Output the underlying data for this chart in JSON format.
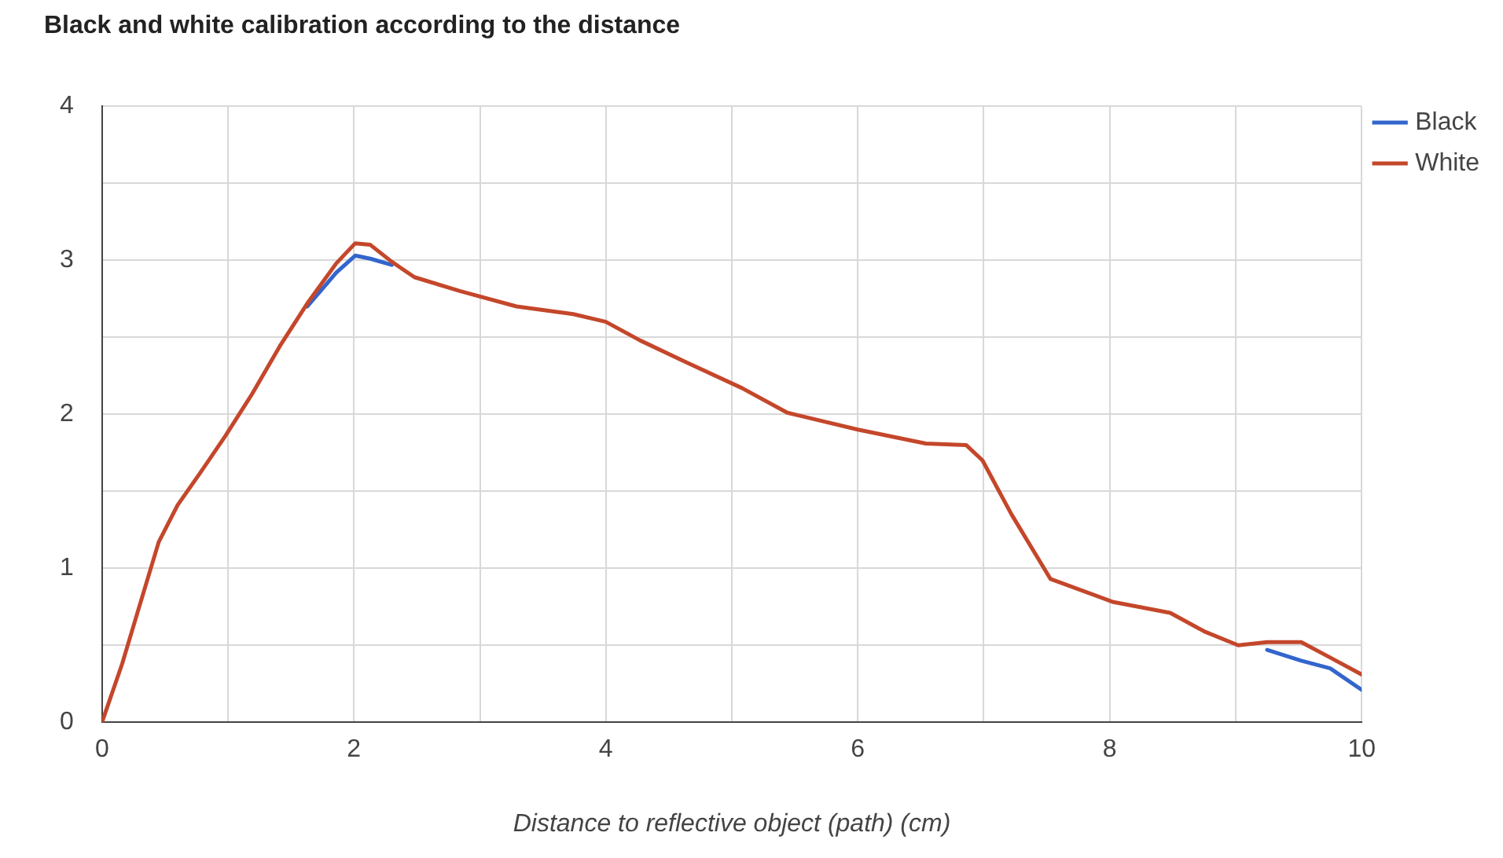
{
  "chart_data": {
    "type": "line",
    "title": "Black and white calibration according to the distance",
    "xlabel": "Distance to reflective object (path) (cm)",
    "x": [
      0,
      0.16,
      0.31,
      0.45,
      0.6,
      0.78,
      0.98,
      1.19,
      1.41,
      1.63,
      1.86,
      2.01,
      2.13,
      2.3,
      2.48,
      2.84,
      3.29,
      3.74,
      4.0,
      4.27,
      4.63,
      5.08,
      5.44,
      6.0,
      6.54,
      6.86,
      6.99,
      7.22,
      7.53,
      8.03,
      8.48,
      8.75,
      9.02,
      9.25,
      9.52,
      9.75,
      10
    ],
    "series": [
      {
        "name": "Black",
        "color": "#3366cc",
        "values": [
          null,
          null,
          null,
          null,
          null,
          null,
          null,
          null,
          null,
          2.7,
          2.92,
          3.03,
          3.01,
          2.97,
          null,
          null,
          null,
          null,
          null,
          null,
          null,
          null,
          null,
          null,
          null,
          null,
          null,
          null,
          null,
          null,
          null,
          null,
          null,
          0.47,
          0.4,
          0.35,
          0.21
        ]
      },
      {
        "name": "White",
        "color": "#c4472b",
        "values": [
          0,
          0.38,
          0.79,
          1.17,
          1.41,
          1.62,
          1.86,
          2.13,
          2.44,
          2.72,
          2.98,
          3.11,
          3.1,
          2.99,
          2.89,
          2.8,
          2.7,
          2.65,
          2.6,
          2.48,
          2.34,
          2.17,
          2.01,
          1.9,
          1.81,
          1.8,
          1.7,
          1.35,
          0.93,
          0.78,
          0.71,
          0.59,
          0.5,
          0.52,
          0.52,
          0.42,
          0.31
        ]
      }
    ],
    "xlim": [
      0,
      10
    ],
    "xticks": [
      0,
      {
        "value": 1,
        "label": null
      },
      2,
      {
        "value": 3,
        "label": null
      },
      4,
      {
        "value": 5,
        "label": null
      },
      6,
      {
        "value": 7,
        "label": null
      },
      8,
      {
        "value": 9,
        "label": null
      },
      10
    ],
    "ylim": [
      0,
      4
    ],
    "yticks": [
      0,
      {
        "value": 0.5,
        "label": null
      },
      1,
      {
        "value": 1.5,
        "label": null
      },
      2,
      {
        "value": 2.5,
        "label": null
      },
      3,
      {
        "value": 3.5,
        "label": null
      },
      4
    ],
    "grid": true,
    "legend": "top right",
    "marker": "none",
    "line_style": "solid"
  }
}
